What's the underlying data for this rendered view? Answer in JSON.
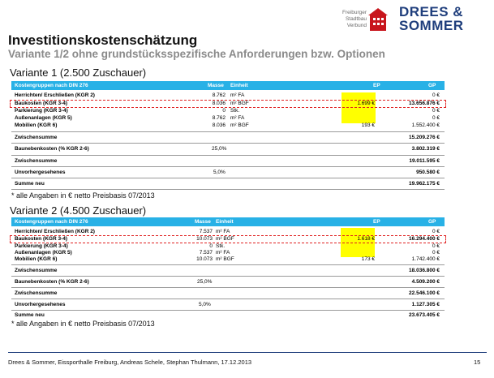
{
  "header": {
    "logo_fsv_lines": [
      "Freiburger",
      "Stadtbau",
      "Verbund"
    ],
    "logo_ds_lines": [
      "DREES &",
      "SOMMER"
    ],
    "title": "Investitionskostenschätzung",
    "subtitle": "Variante 1/2 ohne grundstücksspezifische Anforderungen bzw. Optionen"
  },
  "columns": {
    "group": "Kostengruppen nach DIN 276",
    "masse": "Masse",
    "einheit": "Einheit",
    "ep": "EP",
    "gp": "GP"
  },
  "variant1": {
    "title": "Variante 1 (2.500 Zuschauer)",
    "rows": [
      {
        "label": "Herrichten/ Erschließen (KGR 2)",
        "masse": "8.762",
        "einheit": "m² FA",
        "ep": "",
        "gp": "0 €"
      },
      {
        "label": "Baukosten (KGR 3-4)",
        "masse": "8.036",
        "einheit": "m² BGF",
        "ep": "1.699 €",
        "gp": "13.656.876 €"
      },
      {
        "label": "Parkierung (KGR 3-4)",
        "masse": "0",
        "einheit": "Stk.",
        "ep": "",
        "gp": "0 €"
      },
      {
        "label": "Außenanlagen (KGR 5)",
        "masse": "8.762",
        "einheit": "m² FA",
        "ep": "",
        "gp": "0 €"
      },
      {
        "label": "Mobilien (KGR 6)",
        "masse": "8.036",
        "einheit": "m² BGF",
        "ep": "193 €",
        "gp": "1.552.400 €"
      }
    ],
    "zwischensumme1": {
      "label": "Zwischensumme",
      "gp": "15.209.276 €"
    },
    "baunebenkosten": {
      "label": "Baunebenkosten (% KGR 2-6)",
      "pct": "25,0%",
      "gp": "3.802.319 €"
    },
    "zwischensumme2": {
      "label": "Zwischensumme",
      "gp": "19.011.595 €"
    },
    "unvorhergesehenes": {
      "label": "Unvorhergesehenes",
      "pct": "5,0%",
      "gp": "950.580 €"
    },
    "summe": {
      "label": "Summe neu",
      "gp": "19.962.175 €"
    },
    "note": "* alle Angaben in € netto Preisbasis 07/2013"
  },
  "variant2": {
    "title": "Variante 2 (4.500 Zuschauer)",
    "rows": [
      {
        "label": "Herrichten/ Erschließen (KGR 2)",
        "masse": "7.537",
        "einheit": "m² FA",
        "ep": "",
        "gp": "0 €"
      },
      {
        "label": "Baukosten (KGR 3-4)",
        "masse": "10.073",
        "einheit": "m² BGF",
        "ep": "1.618 €",
        "gp": "16.294.400 €"
      },
      {
        "label": "Parkierung (KGR 3-4)",
        "masse": "0",
        "einheit": "Stk.",
        "ep": "",
        "gp": "0 €"
      },
      {
        "label": "Außenanlagen (KGR 5)",
        "masse": "7.537",
        "einheit": "m² FA",
        "ep": "",
        "gp": "0 €"
      },
      {
        "label": "Mobilien (KGR 6)",
        "masse": "10.073",
        "einheit": "m² BGF",
        "ep": "173 €",
        "gp": "1.742.400 €"
      }
    ],
    "zwischensumme1": {
      "label": "Zwischensumme",
      "gp": "18.036.800 €"
    },
    "baunebenkosten": {
      "label": "Baunebenkosten (% KGR 2-6)",
      "pct": "25,0%",
      "gp": "4.509.200 €"
    },
    "zwischensumme2": {
      "label": "Zwischensumme",
      "gp": "22.546.100 €"
    },
    "unvorhergesehenes": {
      "label": "Unvorhergesehenes",
      "pct": "5,0%",
      "gp": "1.127.305 €"
    },
    "summe": {
      "label": "Summe neu",
      "gp": "23.673.405 €"
    },
    "note": "* alle Angaben in € netto Preisbasis 07/2013"
  },
  "footer": {
    "text": "Drees & Sommer, Eissporthalle Freiburg, Andreas Schele, Stephan Thulmann, 17.12.2013",
    "page": "15"
  },
  "colors": {
    "header_blue": "#28b1e6",
    "highlight_yellow": "#ffff00",
    "mark_red": "#e02020",
    "brand_blue": "#1f3e7c"
  }
}
